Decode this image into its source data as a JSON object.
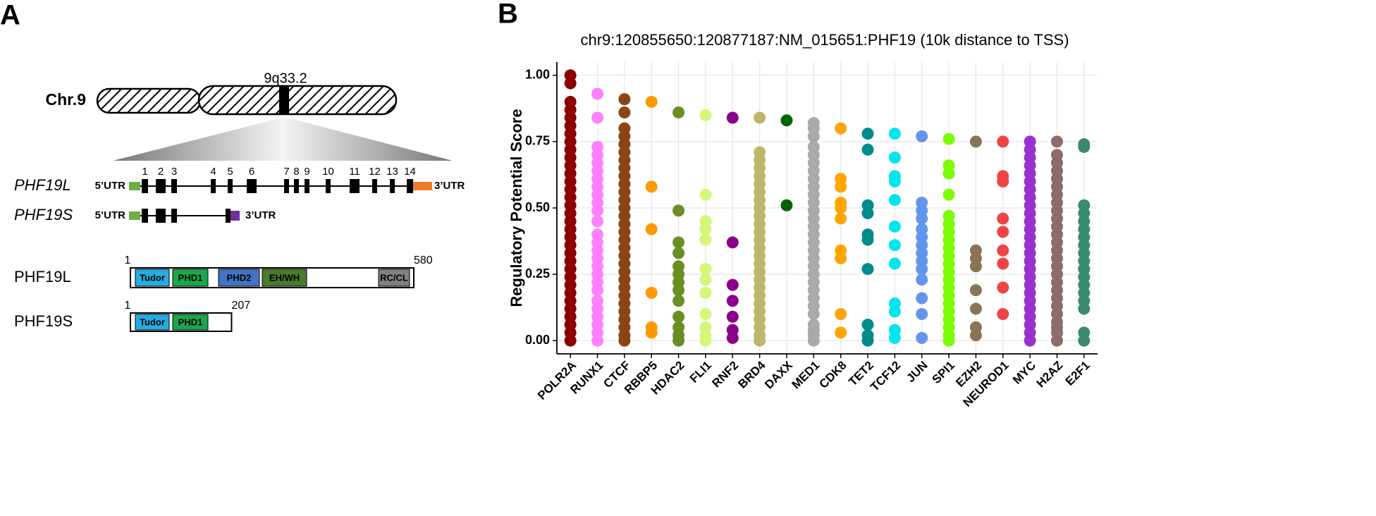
{
  "panel_a": {
    "label": "A",
    "chromosome": "Chr.9",
    "band": "9q33.2",
    "genes": [
      {
        "name": "PHF19L",
        "utr5": "5’UTR",
        "utr3": "3’UTR",
        "exons": [
          "1",
          "2",
          "3",
          "4",
          "5",
          "6",
          "7",
          "8",
          "9",
          "10",
          "11",
          "12",
          "13",
          "14"
        ]
      },
      {
        "name": "PHF19S",
        "utr5": "5’UTR",
        "utr3": "3’UTR"
      }
    ],
    "proteins": [
      {
        "name": "PHF19L",
        "start": 1,
        "length": 580,
        "domains": [
          "Tudor",
          "PHD1",
          "PHD2",
          "EH/WH",
          "RC/CL"
        ]
      },
      {
        "name": "PHF19S",
        "start": 1,
        "length": 207,
        "domains": [
          "Tudor",
          "PHD1"
        ]
      }
    ]
  },
  "chart_data": {
    "type": "strip",
    "panel_label": "B",
    "title": "chr9:120855650:120877187:NM_015651:PHF19 (10k distance to TSS)",
    "y_label": "Regulatory Potential Score",
    "categories": [
      "POLR2A",
      "RUNX1",
      "CTCF",
      "RBBP5",
      "HDAC2",
      "FLI1",
      "RNF2",
      "BRD4",
      "DAXX",
      "MED1",
      "CDK8",
      "TET2",
      "TCF12",
      "JUN",
      "SPI1",
      "EZH2",
      "NEUROD1",
      "MYC",
      "H2AZ",
      "E2F1"
    ],
    "colors": [
      "#8b0000",
      "#ff80ff",
      "#8b4513",
      "#ff9900",
      "#6b8e23",
      "#d4f77a",
      "#8b008b",
      "#bdb76b",
      "#006400",
      "#a9a9a9",
      "#ffa500",
      "#008b8b",
      "#00e5ee",
      "#6495ed",
      "#7cfc00",
      "#8b7355",
      "#ef4444",
      "#9932cc",
      "#8f6b6b",
      "#3a8a6e"
    ],
    "values": [
      [
        0,
        0.03,
        0.06,
        0.09,
        0.12,
        0.15,
        0.18,
        0.21,
        0.24,
        0.27,
        0.3,
        0.33,
        0.36,
        0.39,
        0.42,
        0.45,
        0.48,
        0.51,
        0.54,
        0.57,
        0.6,
        0.63,
        0.66,
        0.69,
        0.72,
        0.75,
        0.78,
        0.81,
        0.84,
        0.87,
        0.9,
        0.97,
        1.0
      ],
      [
        0.93,
        0.84,
        0.73,
        0.7,
        0.67,
        0.64,
        0.61,
        0.58,
        0.55,
        0.52,
        0.49,
        0.45,
        0.4,
        0.37,
        0.34,
        0.31,
        0.28,
        0.25,
        0.22,
        0.19,
        0.15,
        0.12,
        0.09,
        0.06,
        0.03,
        0
      ],
      [
        0.91,
        0.86,
        0.8,
        0.77,
        0.74,
        0.71,
        0.68,
        0.65,
        0.62,
        0.59,
        0.56,
        0.53,
        0.5,
        0.47,
        0.44,
        0.41,
        0.38,
        0.35,
        0.32,
        0.29,
        0.26,
        0.23,
        0.2,
        0.17,
        0.14,
        0.11,
        0.08,
        0.05,
        0.02,
        0
      ],
      [
        0.9,
        0.58,
        0.42,
        0.18,
        0.05,
        0.03
      ],
      [
        0.86,
        0.49,
        0.37,
        0.33,
        0.28,
        0.25,
        0.22,
        0.19,
        0.15,
        0.09,
        0.05,
        0.02,
        0
      ],
      [
        0.85,
        0.55,
        0.45,
        0.42,
        0.38,
        0.27,
        0.23,
        0.18,
        0.1,
        0.05,
        0.02,
        0
      ],
      [
        0.84,
        0.37,
        0.21,
        0.15,
        0.09,
        0.04,
        0.01
      ],
      [
        0.84,
        0.71,
        0.68,
        0.65,
        0.62,
        0.59,
        0.56,
        0.53,
        0.5,
        0.47,
        0.44,
        0.41,
        0.38,
        0.35,
        0.32,
        0.29,
        0.26,
        0.23,
        0.2,
        0.17,
        0.14,
        0.11,
        0.08,
        0.05,
        0.02,
        0
      ],
      [
        0.83,
        0.51
      ],
      [
        0.82,
        0.8,
        0.77,
        0.73,
        0.7,
        0.67,
        0.64,
        0.61,
        0.58,
        0.55,
        0.52,
        0.49,
        0.46,
        0.43,
        0.4,
        0.37,
        0.34,
        0.31,
        0.28,
        0.25,
        0.22,
        0.19,
        0.16,
        0.13,
        0.1,
        0.06,
        0.04,
        0.02,
        0
      ],
      [
        0.8,
        0.61,
        0.58,
        0.52,
        0.5,
        0.46,
        0.34,
        0.31,
        0.1,
        0.03
      ],
      [
        0.78,
        0.72,
        0.51,
        0.48,
        0.4,
        0.38,
        0.27,
        0.06,
        0.02,
        0
      ],
      [
        0.78,
        0.69,
        0.62,
        0.6,
        0.53,
        0.43,
        0.36,
        0.29,
        0.14,
        0.11,
        0.04,
        0.01
      ],
      [
        0.77,
        0.52,
        0.49,
        0.46,
        0.42,
        0.39,
        0.36,
        0.33,
        0.3,
        0.27,
        0.23,
        0.16,
        0.1,
        0.01
      ],
      [
        0.76,
        0.66,
        0.63,
        0.55,
        0.47,
        0.44,
        0.41,
        0.38,
        0.35,
        0.32,
        0.29,
        0.26,
        0.23,
        0.2,
        0.17,
        0.14,
        0.11,
        0.08,
        0.05,
        0.02,
        0
      ],
      [
        0.75,
        0.34,
        0.31,
        0.28,
        0.19,
        0.12,
        0.05,
        0.02
      ],
      [
        0.75,
        0.62,
        0.6,
        0.46,
        0.41,
        0.34,
        0.29,
        0.2,
        0.1
      ],
      [
        0.75,
        0.72,
        0.69,
        0.66,
        0.63,
        0.6,
        0.57,
        0.54,
        0.51,
        0.48,
        0.45,
        0.42,
        0.39,
        0.36,
        0.33,
        0.3,
        0.27,
        0.24,
        0.21,
        0.18,
        0.15,
        0.12,
        0.09,
        0.06,
        0.03,
        0
      ],
      [
        0.75,
        0.7,
        0.67,
        0.64,
        0.61,
        0.58,
        0.55,
        0.52,
        0.49,
        0.46,
        0.43,
        0.4,
        0.37,
        0.34,
        0.31,
        0.28,
        0.25,
        0.22,
        0.19,
        0.16,
        0.13,
        0.1,
        0.07,
        0.05,
        0.03,
        0
      ],
      [
        0.74,
        0.73,
        0.51,
        0.48,
        0.45,
        0.42,
        0.39,
        0.36,
        0.33,
        0.3,
        0.27,
        0.24,
        0.21,
        0.18,
        0.15,
        0.12,
        0.03,
        0
      ]
    ],
    "ylim": [
      -0.05,
      1.05
    ],
    "yticks": [
      {
        "value": 0,
        "label": "0.00"
      },
      {
        "value": 0.25,
        "label": "0.25"
      },
      {
        "value": 0.5,
        "label": "0.50"
      },
      {
        "value": 0.75,
        "label": "0.75"
      },
      {
        "value": 1,
        "label": "1.00"
      }
    ],
    "grid": true
  }
}
